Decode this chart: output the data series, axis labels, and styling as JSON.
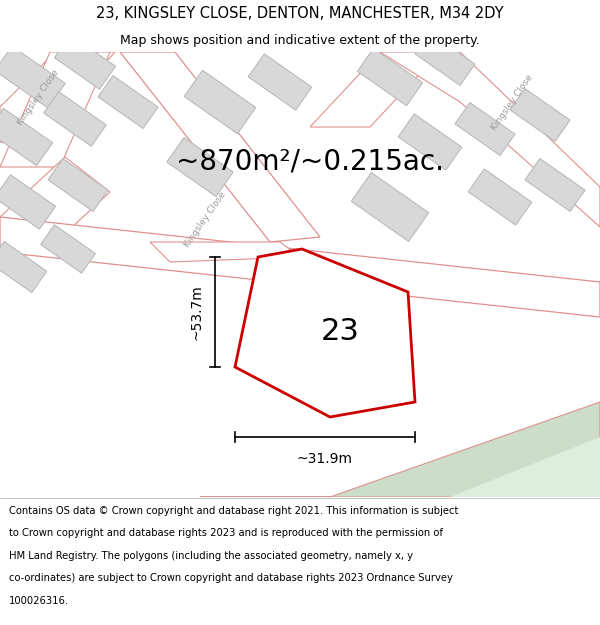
{
  "title_line1": "23, KINGSLEY CLOSE, DENTON, MANCHESTER, M34 2DY",
  "title_line2": "Map shows position and indicative extent of the property.",
  "area_text": "~870m²/~0.215ac.",
  "label_number": "23",
  "dim_height": "~53.7m",
  "dim_width": "~31.9m",
  "bg_map_color": "#f2f2f2",
  "road_fill_color": "#ffffff",
  "road_stroke_color": "#e09090",
  "building_fill_color": "#d8d8d8",
  "building_stroke_color": "#bbbbbb",
  "highlight_fill_color": "#ffffff",
  "highlight_stroke_color": "#cc0000",
  "green_strip_color": "#ccdeca",
  "road_label_color": "#999999",
  "title_fontsize": 10.5,
  "subtitle_fontsize": 9,
  "footer_fontsize": 7.2,
  "area_fontsize": 20,
  "label_fontsize": 22,
  "dim_fontsize": 10,
  "footer_lines": [
    "Contains OS data © Crown copyright and database right 2021. This information is subject",
    "to Crown copyright and database rights 2023 and is reproduced with the permission of",
    "HM Land Registry. The polygons (including the associated geometry, namely x, y",
    "co-ordinates) are subject to Crown copyright and database rights 2023 Ordnance Survey",
    "100026316."
  ]
}
